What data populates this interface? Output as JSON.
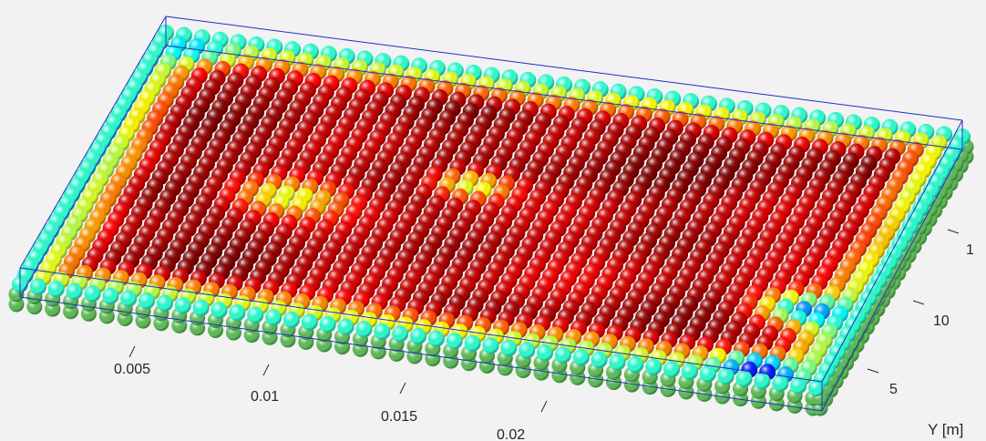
{
  "chart_data": {
    "type": "scatter",
    "style": "3d-spheres",
    "title": "",
    "xlabel": "",
    "ylabel": "Y [m]",
    "x_ticks": [
      "0.005",
      "0.01",
      "0.015",
      "0.02"
    ],
    "y_ticks": [
      "5",
      "10",
      "1"
    ],
    "grid": false,
    "legend": "none",
    "colormap": "jet",
    "bounding_box_color": "#1f2fc8",
    "substrate_color": "#5fbf5a",
    "background_color": "#f2f2f2",
    "film_grid": {
      "cols": 44,
      "rows": 28
    },
    "value_range": [
      0,
      1
    ],
    "hotspots": [
      {
        "u": 0.18,
        "v": 0.3,
        "value": 0.95,
        "radius": 0.14
      },
      {
        "u": 0.3,
        "v": 0.22,
        "value": 0.9,
        "radius": 0.12
      },
      {
        "u": 0.55,
        "v": 0.55,
        "value": 0.92,
        "radius": 0.2
      },
      {
        "u": 0.72,
        "v": 0.28,
        "value": 1.0,
        "radius": 0.15
      },
      {
        "u": 0.65,
        "v": 0.7,
        "value": 0.88,
        "radius": 0.16
      },
      {
        "u": 0.4,
        "v": 0.75,
        "value": 0.9,
        "radius": 0.15
      },
      {
        "u": 0.85,
        "v": 0.45,
        "value": 0.86,
        "radius": 0.14
      }
    ],
    "coldspots": [
      {
        "u": 0.04,
        "v": 0.05,
        "value": 0.3,
        "radius": 0.06
      },
      {
        "u": 0.94,
        "v": 0.72,
        "value": 0.25,
        "radius": 0.06
      },
      {
        "u": 0.92,
        "v": 0.96,
        "value": 0.12,
        "radius": 0.05
      },
      {
        "u": 0.46,
        "v": 0.42,
        "value": 0.55,
        "radius": 0.05
      },
      {
        "u": 0.25,
        "v": 0.55,
        "value": 0.58,
        "radius": 0.07
      }
    ]
  }
}
